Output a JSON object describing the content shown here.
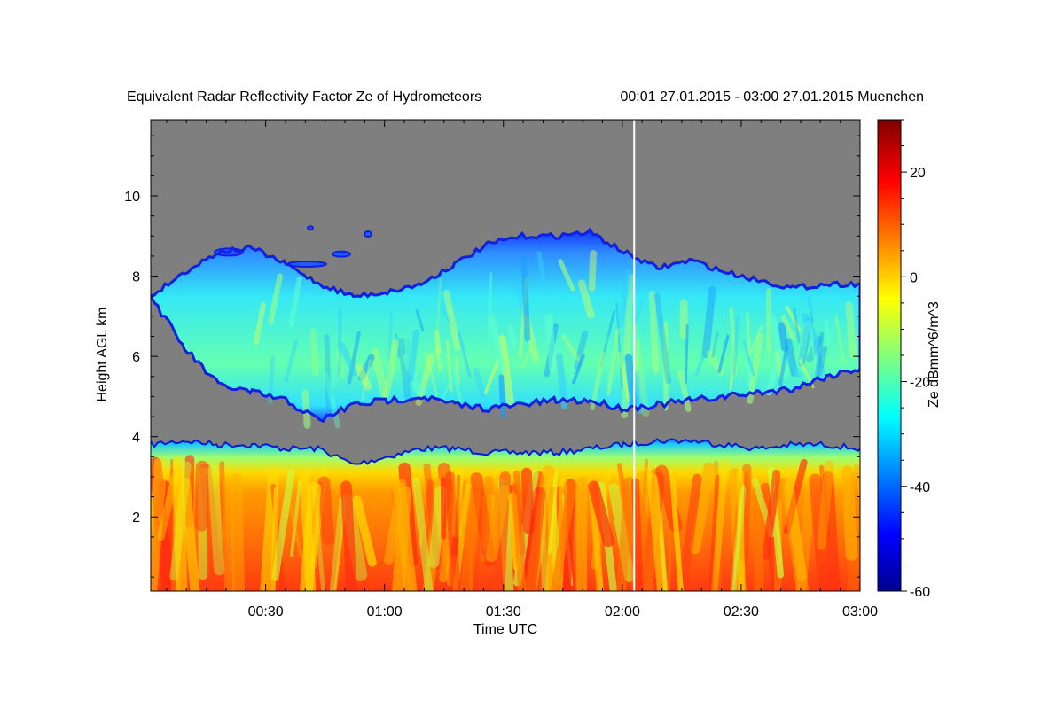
{
  "chart_data": {
    "type": "heatmap",
    "title": "Equivalent Radar Reflectivity Factor Ze of Hydrometeors",
    "subtitle": "00:01 27.01.2015 - 03:00 27.01.2015 Muenchen",
    "xlabel": "Time UTC",
    "ylabel": "Height AGL km",
    "xlim": [
      "00:01",
      "03:00"
    ],
    "ylim": [
      0.15,
      11.9
    ],
    "x_ticks": [
      "00:30",
      "01:00",
      "01:30",
      "02:00",
      "02:30",
      "03:00"
    ],
    "y_ticks": [
      2,
      4,
      6,
      8,
      10
    ],
    "colorbar": {
      "label": "Ze dBmm^6/m^3",
      "min": -60,
      "max": 30,
      "ticks": [
        -60,
        -40,
        -20,
        0,
        20
      ]
    },
    "background_color": "#7f7f7f",
    "marker_line_time": "02:03",
    "layers": [
      {
        "name": "upper cloud layer",
        "base_km": [
          7.5,
          6.2,
          5.3,
          5.1,
          4.9,
          4.4,
          4.8,
          4.9,
          5.0,
          4.8,
          4.7,
          4.8,
          4.9,
          4.9,
          4.7,
          4.8,
          4.9,
          5.0,
          5.1,
          5.2,
          5.5,
          5.7
        ],
        "top_km": [
          7.5,
          8.1,
          8.6,
          8.7,
          8.3,
          7.8,
          7.5,
          7.6,
          7.8,
          8.3,
          8.8,
          9.0,
          9.0,
          9.1,
          8.6,
          8.2,
          8.4,
          8.1,
          7.9,
          7.7,
          7.8,
          7.8
        ],
        "typical_ze_dbz": -25
      },
      {
        "name": "lower precipitation layer",
        "base_km": 0.15,
        "top_km": [
          3.8,
          3.9,
          3.8,
          3.8,
          3.7,
          3.7,
          3.3,
          3.5,
          3.7,
          3.7,
          3.6,
          3.6,
          3.6,
          3.7,
          3.8,
          3.9,
          3.9,
          3.8,
          3.7,
          3.8,
          3.8,
          3.7
        ],
        "typical_ze_dbz": 10
      }
    ]
  }
}
